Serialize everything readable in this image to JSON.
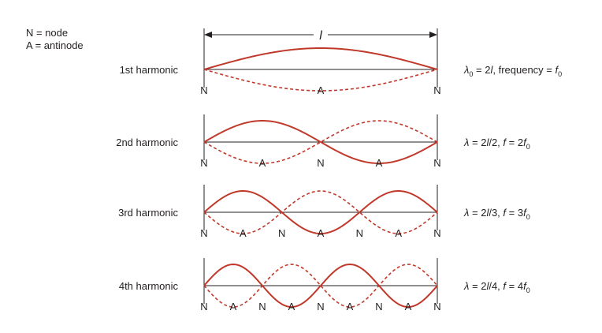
{
  "legend": {
    "node": "N = node",
    "antinode": "A = antinode"
  },
  "length_label": "l",
  "node_letter": "N",
  "antinode_letter": "A",
  "colors": {
    "wave": "#c0392b",
    "line": "#231f20",
    "text": "#231f20"
  },
  "harmonics": [
    {
      "n": 1,
      "label": "1st harmonic",
      "formula": [
        {
          "t": "λ",
          "i": true
        },
        {
          "t": "0",
          "sub": true
        },
        {
          "t": " = 2"
        },
        {
          "t": "l",
          "i": true
        },
        {
          "t": ", frequency = "
        },
        {
          "t": "f",
          "i": true
        },
        {
          "t": "0",
          "sub": true
        }
      ]
    },
    {
      "n": 2,
      "label": "2nd harmonic",
      "formula": [
        {
          "t": "λ",
          "i": true
        },
        {
          "t": " = 2"
        },
        {
          "t": "l",
          "i": true
        },
        {
          "t": "/2, "
        },
        {
          "t": "f",
          "i": true
        },
        {
          "t": " = 2"
        },
        {
          "t": "f",
          "i": true
        },
        {
          "t": "0",
          "sub": true
        }
      ]
    },
    {
      "n": 3,
      "label": "3rd harmonic",
      "formula": [
        {
          "t": "λ",
          "i": true
        },
        {
          "t": " = 2"
        },
        {
          "t": "l",
          "i": true
        },
        {
          "t": "/3, "
        },
        {
          "t": "f",
          "i": true
        },
        {
          "t": " = 3"
        },
        {
          "t": "f",
          "i": true
        },
        {
          "t": "0",
          "sub": true
        }
      ]
    },
    {
      "n": 4,
      "label": "4th harmonic",
      "formula": [
        {
          "t": "λ",
          "i": true
        },
        {
          "t": " = 2"
        },
        {
          "t": "l",
          "i": true
        },
        {
          "t": "/4, "
        },
        {
          "t": "f",
          "i": true
        },
        {
          "t": " = 4"
        },
        {
          "t": "f",
          "i": true
        },
        {
          "t": "0",
          "sub": true
        }
      ]
    }
  ]
}
